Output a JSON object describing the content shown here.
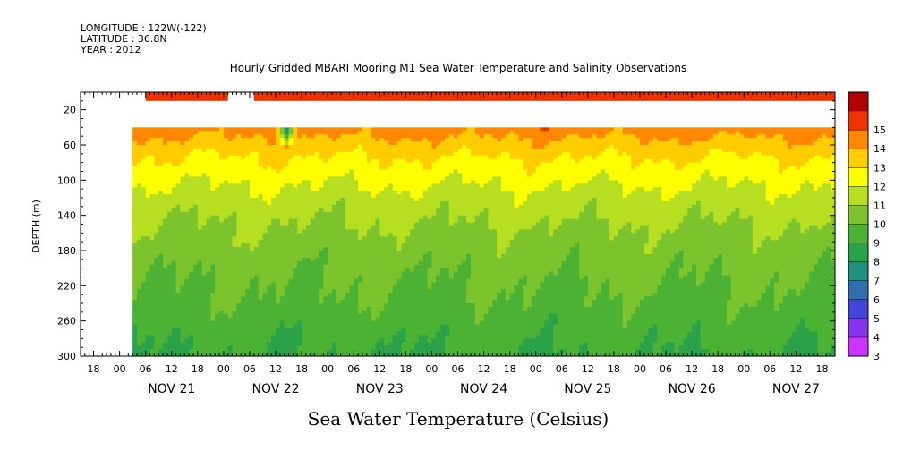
{
  "header": {
    "longitude": "LONGITUDE : 122W(-122)",
    "latitude": "LATITUDE : 36.8N",
    "year": "YEAR : 2012"
  },
  "chart_data": {
    "type": "heatmap",
    "title": "Hourly Gridded MBARI Mooring M1 Sea Water Temperature and Salinity Observations",
    "xlabel": "Sea Water Temperature (Celsius)",
    "ylabel": "DEPTH (m)",
    "ylim": [
      300,
      0
    ],
    "xlim_hours_of_nov_2012": [
      "2012-11-20T15:00",
      "2012-11-27T21:00"
    ],
    "y_ticks": [
      "20",
      "60",
      "100",
      "140",
      "180",
      "220",
      "260",
      "300"
    ],
    "x_hour_ticks": [
      "00",
      "06",
      "12",
      "18"
    ],
    "x_day_labels": [
      "NOV 21",
      "NOV 22",
      "NOV 23",
      "NOV 24",
      "NOV 25",
      "NOV 26",
      "NOV 27"
    ],
    "data_start": "2012-11-21T03:00",
    "data_end": "2012-11-27T21:00",
    "depths_m": [
      40,
      60,
      80,
      100,
      120,
      140,
      160,
      180,
      200,
      220,
      240,
      260,
      280,
      300
    ],
    "profile_celsius": [
      13.6,
      12.6,
      11.8,
      11.2,
      10.6,
      10.2,
      9.8,
      9.5,
      9.2,
      9.0,
      8.8,
      8.5,
      8.2,
      8.0
    ],
    "surface_band": {
      "depth_m": [
        0,
        10
      ],
      "value_celsius": 14.6,
      "gaps": [
        [
          "2012-11-21T00:00",
          "2012-11-21T06:00"
        ],
        [
          "2012-11-22T01:00",
          "2012-11-22T07:00"
        ]
      ]
    },
    "cold_anomaly": {
      "time": "2012-11-22T14:00",
      "depth_m": [
        40,
        60
      ],
      "min_celsius": 6.0
    },
    "colorbar": {
      "levels": [
        "3",
        "4",
        "5",
        "6",
        "7",
        "8",
        "9",
        "10",
        "11",
        "12",
        "13",
        "14",
        "15"
      ],
      "colors": [
        "#cc33ff",
        "#8833ee",
        "#4444dd",
        "#2f6fb0",
        "#1f8f7f",
        "#2aa24a",
        "#4cb234",
        "#7cc42d",
        "#b6df22",
        "#ffff00",
        "#ffcc00",
        "#ff8800",
        "#ee3300",
        "#b00000"
      ]
    }
  }
}
